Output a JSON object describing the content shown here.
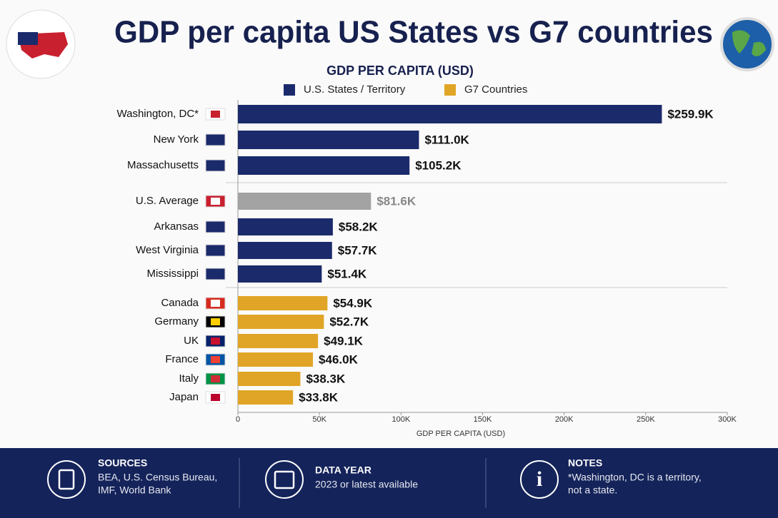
{
  "chart_data": {
    "type": "hbar",
    "title": "GDP per capita US States vs G7 countries",
    "subtitle": "GDP PER CAPITA (USD)",
    "x_label": "GDP PER CAPITA (USD)",
    "legend": [
      {
        "name": "U.S. States / Territory",
        "color": "#1b2a6b"
      },
      {
        "name": "G7 Countries",
        "color": "#e0a526"
      }
    ],
    "categories": [
      "Washington, DC*",
      "New York",
      "Massachusetts",
      "U.S. Average",
      "Arkansas",
      "West Virginia",
      "Mississippi",
      "Canada",
      "Germany",
      "UK",
      "France",
      "Italy",
      "Japan"
    ],
    "values": [
      259900,
      111000,
      105200,
      81600,
      58200,
      57700,
      51400,
      54900,
      52700,
      49100,
      46000,
      38300,
      33800
    ],
    "value_labels": [
      "$259.9K",
      "$111.0K",
      "$105.2K",
      "$81.6K",
      "$58.2K",
      "$57.7K",
      "$51.4K",
      "$54.9K",
      "$52.7K",
      "$49.1K",
      "$46.0K",
      "$38.3K",
      "$33.8K"
    ],
    "colors": [
      "#1b2a6b",
      "#1b2a6b",
      "#1b2a6b",
      "#a3a3a3",
      "#1b2a6b",
      "#1b2a6b",
      "#1b2a6b",
      "#e0a526",
      "#e0a526",
      "#e0a526",
      "#e0a526",
      "#e0a526",
      "#e0a526"
    ],
    "xlim": [
      0,
      300000
    ],
    "xticks": [
      0,
      {
        "value": 50000,
        "label": "50K"
      },
      {
        "value": 100000,
        "label": "100K"
      },
      {
        "value": 150000,
        "label": "150K"
      },
      {
        "value": 200000,
        "label": "200K"
      },
      {
        "value": 250000,
        "label": "250K"
      },
      {
        "value": 300000,
        "label": "300K"
      }
    ]
  },
  "footer": {
    "sources": {
      "title": "SOURCES",
      "lines": [
        "BEA, U.S. Census Bureau,",
        "IMF, World Bank"
      ]
    },
    "data_year": {
      "title": "DATA YEAR",
      "lines": [
        "2023 or latest available"
      ]
    },
    "notes": {
      "title": "NOTES",
      "lines": [
        "*Washington, DC is a territory,",
        "not a state."
      ]
    }
  }
}
